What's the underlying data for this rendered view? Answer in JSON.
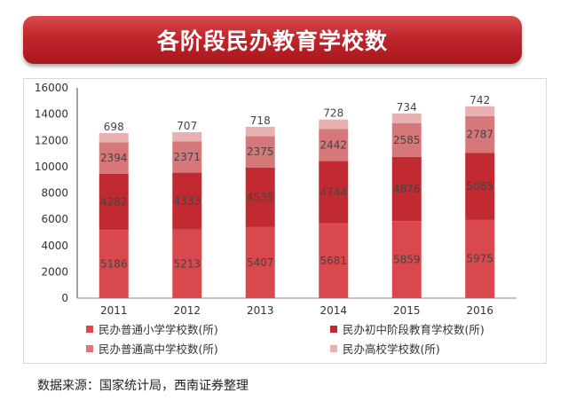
{
  "title": "各阶段民办教育学校数",
  "source": "数据来源：国家统计局，西南证券整理",
  "chart_data": {
    "type": "bar",
    "stacked": true,
    "categories": [
      "2011",
      "2012",
      "2013",
      "2014",
      "2015",
      "2016"
    ],
    "ylim": [
      0,
      16000
    ],
    "yticks": [
      "0",
      "2000",
      "4000",
      "6000",
      "8000",
      "10000",
      "12000",
      "14000",
      "16000"
    ],
    "grid": false,
    "legend_position": "bottom",
    "series": [
      {
        "name": "民办普通小学学校数(所)",
        "color": "#d9484c",
        "values": [
          5186,
          5213,
          5407,
          5681,
          5859,
          5975
        ]
      },
      {
        "name": "民办初中阶段教育学校数(所)",
        "color": "#c02a30",
        "values": [
          4282,
          4333,
          4535,
          4744,
          4876,
          5085
        ]
      },
      {
        "name": "民办普通高中学校数(所)",
        "color": "#d6787a",
        "values": [
          2394,
          2371,
          2375,
          2442,
          2585,
          2787
        ]
      },
      {
        "name": "民办高校学校数(所)",
        "color": "#e8b2b3",
        "values": [
          698,
          707,
          718,
          728,
          734,
          742
        ]
      }
    ]
  }
}
